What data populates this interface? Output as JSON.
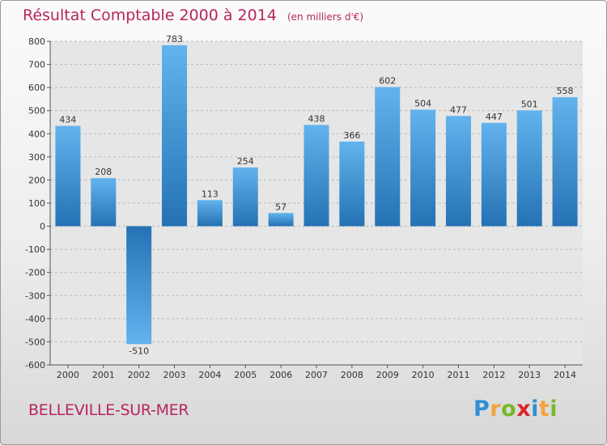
{
  "chart_data": {
    "type": "bar",
    "title": "Résultat Comptable 2000 à 2014",
    "unit_note": "(en milliers d'€)",
    "categories": [
      "2000",
      "2001",
      "2002",
      "2003",
      "2004",
      "2005",
      "2006",
      "2007",
      "2008",
      "2009",
      "2010",
      "2011",
      "2012",
      "2013",
      "2014"
    ],
    "values": [
      434,
      208,
      -510,
      783,
      113,
      254,
      57,
      438,
      366,
      602,
      504,
      477,
      447,
      501,
      558
    ],
    "ylim": [
      -600,
      800
    ],
    "yticks": [
      800,
      700,
      600,
      500,
      400,
      300,
      200,
      100,
      0,
      -100,
      -200,
      -300,
      -400,
      -500,
      -600
    ],
    "ytick_labels": [
      "800",
      "700",
      "600",
      "500",
      "400",
      "300",
      "200",
      "100",
      "0",
      "-100",
      "-200",
      "-300",
      "-400",
      "-500",
      "-600"
    ],
    "grid": true,
    "xlabel": "",
    "ylabel": ""
  },
  "place_name": "BELLEVILLE-SUR-MER",
  "logo": {
    "letters": [
      "P",
      "r",
      "o",
      "x",
      "i",
      "t",
      "i"
    ],
    "colors": [
      "#2e8fd4",
      "#f2a33a",
      "#77b82a",
      "#d9262a",
      "#2e8fd4",
      "#f2a33a",
      "#77b82a"
    ]
  },
  "colors": {
    "title": "#b8245f",
    "bar_light": "#62b3ee",
    "bar_dark": "#2472b4",
    "grid": "#b9b9b9",
    "plot_bg": "#e6e6e6"
  }
}
